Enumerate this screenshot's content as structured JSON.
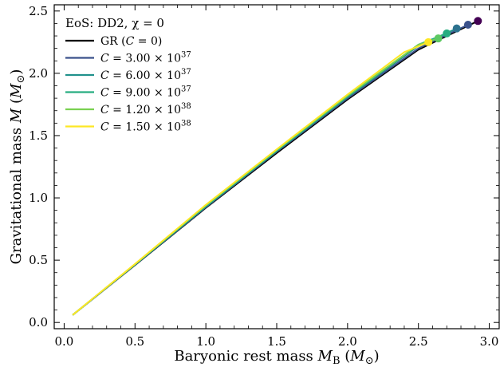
{
  "chart_data": {
    "type": "line",
    "title": "",
    "legend_title": "EoS: DD2, χ = 0",
    "xlabel": "Baryonic rest mass M_B (M_⊙)",
    "xlabel_parts": {
      "text": "Baryonic rest mass ",
      "sym": "M",
      "sub": "B",
      "unit_open": " (",
      "unit_sym": "M",
      "unit_sub": "⊙",
      "unit_close": ")"
    },
    "ylabel": "Gravitational mass M (M_⊙)",
    "ylabel_parts": {
      "text": "Gravitational mass ",
      "sym": "M",
      "unit_open": " (",
      "unit_sym": "M",
      "unit_sub": "⊙",
      "unit_close": ")"
    },
    "xlim": [
      -0.07,
      3.07
    ],
    "ylim": [
      -0.05,
      2.55
    ],
    "xticks": [
      0.0,
      0.5,
      1.0,
      1.5,
      2.0,
      2.5,
      3.0
    ],
    "xtick_labels": [
      "0.0",
      "0.5",
      "1.0",
      "1.5",
      "2.0",
      "2.5",
      "3.0"
    ],
    "yticks": [
      0.0,
      0.5,
      1.0,
      1.5,
      2.0,
      2.5
    ],
    "ytick_labels": [
      "0.0",
      "0.5",
      "1.0",
      "1.5",
      "2.0",
      "2.5"
    ],
    "legend_position": "top-left",
    "grid": false,
    "series": [
      {
        "name": "GR (C = 0)",
        "legend_parts": {
          "pre": "GR (",
          "sym": "C",
          "eq": " = ",
          "mant": "0",
          "exp": "",
          "post": ")"
        },
        "color": "#000000",
        "marker_color": "#440154",
        "x": [
          0.06,
          0.5,
          1.0,
          1.5,
          2.0,
          2.5,
          2.92
        ],
        "y": [
          0.06,
          0.46,
          0.92,
          1.36,
          1.79,
          2.19,
          2.42
        ]
      },
      {
        "name": "C = 3.00 × 10^37",
        "legend_parts": {
          "pre": "",
          "sym": "C",
          "eq": " = ",
          "mant": "3.00 × 10",
          "exp": "37",
          "post": ""
        },
        "color": "#3b528b",
        "marker_color": "#3b528b",
        "x": [
          0.06,
          0.5,
          1.0,
          1.5,
          2.0,
          2.5,
          2.85
        ],
        "y": [
          0.06,
          0.462,
          0.925,
          1.37,
          1.8,
          2.2,
          2.39
        ]
      },
      {
        "name": "C = 6.00 × 10^37",
        "legend_parts": {
          "pre": "",
          "sym": "C",
          "eq": " = ",
          "mant": "6.00 × 10",
          "exp": "37",
          "post": ""
        },
        "color": "#21918c",
        "marker_color": "#2c728e",
        "x": [
          0.06,
          0.5,
          1.0,
          1.5,
          2.0,
          2.5,
          2.77
        ],
        "y": [
          0.06,
          0.464,
          0.93,
          1.375,
          1.81,
          2.22,
          2.36
        ]
      },
      {
        "name": "C = 9.00 × 10^37",
        "legend_parts": {
          "pre": "",
          "sym": "C",
          "eq": " = ",
          "mant": "9.00 × 10",
          "exp": "37",
          "post": ""
        },
        "color": "#27ad81",
        "marker_color": "#27ad81",
        "x": [
          0.06,
          0.5,
          1.0,
          1.5,
          2.0,
          2.5,
          2.7
        ],
        "y": [
          0.06,
          0.466,
          0.935,
          1.38,
          1.815,
          2.23,
          2.32
        ]
      },
      {
        "name": "C = 1.20 × 10^38",
        "legend_parts": {
          "pre": "",
          "sym": "C",
          "eq": " = ",
          "mant": "1.20 × 10",
          "exp": "38",
          "post": ""
        },
        "color": "#7ad151",
        "marker_color": "#5ec962",
        "x": [
          0.06,
          0.5,
          1.0,
          1.5,
          2.0,
          2.5,
          2.64
        ],
        "y": [
          0.06,
          0.468,
          0.94,
          1.385,
          1.82,
          2.23,
          2.28
        ]
      },
      {
        "name": "C = 1.50 × 10^38",
        "legend_parts": {
          "pre": "",
          "sym": "C",
          "eq": " = ",
          "mant": "1.50 × 10",
          "exp": "38",
          "post": ""
        },
        "color": "#fde725",
        "marker_color": "#fde725",
        "x": [
          0.06,
          0.5,
          1.0,
          1.5,
          2.0,
          2.4,
          2.57
        ],
        "y": [
          0.06,
          0.47,
          0.945,
          1.39,
          1.83,
          2.17,
          2.25
        ]
      }
    ]
  }
}
